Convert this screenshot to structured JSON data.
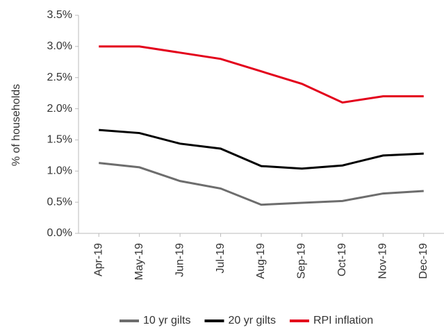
{
  "chart_data": {
    "type": "line",
    "y_label": "% of households",
    "categories": [
      "Apr-19",
      "May-19",
      "Jun-19",
      "Jul-19",
      "Aug-19",
      "Sep-19",
      "Oct-19",
      "Nov-19",
      "Dec-19"
    ],
    "series": [
      {
        "name": "10 yr gilts",
        "color": "#6d6d6d",
        "values": [
          1.13,
          1.06,
          0.84,
          0.72,
          0.46,
          0.49,
          0.52,
          0.64,
          0.68
        ]
      },
      {
        "name": "20 yr gilts",
        "color": "#000000",
        "values": [
          1.66,
          1.61,
          1.44,
          1.36,
          1.08,
          1.04,
          1.09,
          1.25,
          1.28
        ]
      },
      {
        "name": "RPI inflation",
        "color": "#e3001b",
        "values": [
          3.0,
          3.0,
          2.9,
          2.8,
          2.6,
          2.4,
          2.1,
          2.2,
          2.2
        ]
      }
    ],
    "ylim": [
      0,
      3.5
    ],
    "yticks": [
      {
        "value": 0,
        "label": "0.0%"
      },
      {
        "value": 0.5,
        "label": "0.5%"
      },
      {
        "value": 1,
        "label": "1.0%"
      },
      {
        "value": 1.5,
        "label": "1.5%"
      },
      {
        "value": 2,
        "label": "2.0%"
      },
      {
        "value": 2.5,
        "label": "2.5%"
      },
      {
        "value": 3,
        "label": "3.0%"
      },
      {
        "value": 3.5,
        "label": "3.5%"
      }
    ],
    "legend": "bottom"
  }
}
